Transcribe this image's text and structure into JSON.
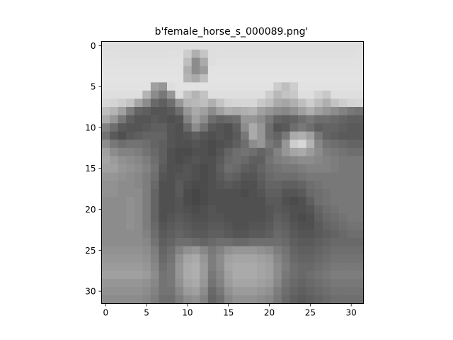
{
  "chart_data": {
    "type": "heatmap",
    "title": "b'female_horse_s_000089.png'",
    "xlabel": "",
    "ylabel": "",
    "colormap": "gray",
    "grid": false,
    "xlim": [
      -0.5,
      31.5
    ],
    "ylim": [
      31.5,
      -0.5
    ],
    "xticks": [
      0,
      5,
      10,
      15,
      20,
      25,
      30
    ],
    "yticks": [
      0,
      5,
      10,
      15,
      20,
      25,
      30
    ],
    "image": {
      "width": 32,
      "height": 32,
      "rows": [
        [
          222,
          222,
          222,
          222,
          222,
          222,
          222,
          222,
          222,
          222,
          222,
          222,
          222,
          222,
          222,
          222,
          222,
          222,
          222,
          222,
          222,
          222,
          222,
          222,
          222,
          222,
          222,
          222,
          222,
          222,
          222,
          222
        ],
        [
          224,
          224,
          223,
          223,
          223,
          223,
          223,
          223,
          224,
          223,
          205,
          175,
          197,
          221,
          223,
          223,
          223,
          223,
          223,
          223,
          223,
          223,
          223,
          223,
          223,
          223,
          223,
          223,
          223,
          223,
          223,
          224
        ],
        [
          225,
          225,
          225,
          225,
          225,
          225,
          225,
          225,
          225,
          225,
          190,
          140,
          170,
          222,
          225,
          225,
          225,
          225,
          225,
          225,
          225,
          225,
          225,
          225,
          225,
          225,
          225,
          225,
          225,
          225,
          225,
          225
        ],
        [
          226,
          226,
          226,
          226,
          226,
          226,
          226,
          226,
          226,
          226,
          175,
          140,
          155,
          226,
          226,
          226,
          226,
          226,
          226,
          226,
          226,
          226,
          226,
          226,
          226,
          226,
          226,
          226,
          226,
          226,
          226,
          226
        ],
        [
          227,
          227,
          227,
          227,
          227,
          227,
          227,
          227,
          227,
          227,
          180,
          170,
          190,
          227,
          227,
          227,
          227,
          227,
          227,
          227,
          227,
          227,
          227,
          227,
          227,
          227,
          227,
          227,
          227,
          227,
          227,
          227
        ],
        [
          226,
          226,
          226,
          226,
          226,
          226,
          160,
          150,
          222,
          226,
          226,
          226,
          226,
          226,
          226,
          226,
          226,
          226,
          226,
          226,
          226,
          204,
          190,
          205,
          226,
          226,
          226,
          226,
          226,
          226,
          226,
          226
        ],
        [
          222,
          222,
          222,
          222,
          222,
          180,
          140,
          120,
          150,
          222,
          195,
          180,
          195,
          222,
          222,
          222,
          222,
          222,
          222,
          222,
          205,
          185,
          195,
          200,
          222,
          222,
          210,
          200,
          222,
          222,
          222,
          222
        ],
        [
          215,
          212,
          205,
          195,
          165,
          140,
          105,
          95,
          110,
          150,
          180,
          185,
          190,
          175,
          195,
          210,
          212,
          214,
          214,
          200,
          190,
          170,
          165,
          175,
          190,
          205,
          190,
          175,
          195,
          205,
          212,
          214
        ],
        [
          190,
          180,
          160,
          125,
          100,
          95,
          85,
          85,
          90,
          110,
          150,
          170,
          160,
          140,
          160,
          175,
          170,
          175,
          180,
          160,
          150,
          140,
          135,
          145,
          160,
          175,
          160,
          150,
          140,
          130,
          120,
          115
        ],
        [
          170,
          150,
          120,
          95,
          85,
          85,
          90,
          85,
          80,
          85,
          130,
          160,
          140,
          110,
          100,
          105,
          110,
          150,
          150,
          140,
          120,
          100,
          95,
          100,
          110,
          120,
          110,
          110,
          105,
          100,
          95,
          95
        ],
        [
          130,
          110,
          90,
          85,
          85,
          90,
          95,
          95,
          85,
          80,
          105,
          140,
          115,
          90,
          85,
          80,
          95,
          140,
          170,
          150,
          110,
          85,
          90,
          110,
          120,
          110,
          95,
          100,
          100,
          95,
          90,
          90
        ],
        [
          115,
          90,
          80,
          90,
          95,
          100,
          100,
          100,
          85,
          80,
          85,
          95,
          85,
          80,
          85,
          80,
          90,
          120,
          170,
          150,
          110,
          100,
          120,
          170,
          175,
          160,
          120,
          100,
          95,
          90,
          90,
          90
        ],
        [
          140,
          120,
          110,
          115,
          115,
          110,
          100,
          95,
          85,
          80,
          80,
          85,
          80,
          75,
          80,
          85,
          95,
          110,
          140,
          150,
          120,
          110,
          150,
          205,
          215,
          180,
          135,
          115,
          110,
          105,
          100,
          100
        ],
        [
          160,
          140,
          130,
          130,
          125,
          115,
          105,
          95,
          80,
          75,
          75,
          80,
          80,
          75,
          85,
          100,
          110,
          115,
          110,
          100,
          110,
          130,
          150,
          165,
          170,
          155,
          140,
          125,
          120,
          115,
          110,
          110
        ],
        [
          165,
          155,
          145,
          140,
          135,
          125,
          110,
          95,
          80,
          75,
          80,
          85,
          80,
          80,
          90,
          105,
          110,
          105,
          95,
          95,
          115,
          125,
          130,
          135,
          140,
          140,
          135,
          130,
          125,
          120,
          120,
          120
        ],
        [
          160,
          160,
          150,
          145,
          140,
          130,
          115,
          90,
          80,
          80,
          85,
          80,
          75,
          80,
          95,
          110,
          105,
          95,
          90,
          100,
          110,
          115,
          120,
          120,
          125,
          130,
          130,
          130,
          125,
          120,
          120,
          120
        ],
        [
          150,
          150,
          145,
          140,
          135,
          125,
          110,
          85,
          80,
          85,
          85,
          80,
          75,
          80,
          90,
          100,
          95,
          85,
          85,
          95,
          105,
          110,
          110,
          110,
          115,
          120,
          120,
          120,
          120,
          120,
          120,
          120
        ],
        [
          145,
          145,
          140,
          140,
          135,
          125,
          105,
          80,
          80,
          90,
          80,
          75,
          75,
          80,
          85,
          90,
          85,
          80,
          80,
          90,
          100,
          100,
          95,
          95,
          100,
          110,
          115,
          120,
          120,
          120,
          120,
          120
        ],
        [
          145,
          145,
          140,
          140,
          140,
          125,
          100,
          80,
          80,
          90,
          75,
          70,
          75,
          80,
          80,
          80,
          80,
          75,
          80,
          85,
          95,
          95,
          85,
          85,
          90,
          105,
          110,
          115,
          120,
          120,
          120,
          120
        ],
        [
          140,
          140,
          140,
          145,
          140,
          125,
          100,
          80,
          80,
          85,
          75,
          70,
          75,
          80,
          80,
          80,
          80,
          80,
          80,
          80,
          90,
          90,
          80,
          75,
          80,
          95,
          110,
          115,
          120,
          120,
          120,
          120
        ],
        [
          140,
          140,
          140,
          145,
          140,
          125,
          100,
          80,
          80,
          85,
          80,
          75,
          80,
          85,
          80,
          80,
          80,
          80,
          80,
          80,
          85,
          90,
          85,
          80,
          80,
          85,
          100,
          110,
          115,
          120,
          120,
          120
        ],
        [
          140,
          140,
          140,
          145,
          140,
          125,
          100,
          80,
          85,
          90,
          85,
          80,
          80,
          85,
          85,
          80,
          80,
          80,
          80,
          80,
          85,
          95,
          90,
          80,
          75,
          80,
          95,
          105,
          110,
          115,
          120,
          120
        ],
        [
          140,
          140,
          140,
          145,
          140,
          125,
          105,
          85,
          90,
          95,
          90,
          85,
          85,
          90,
          90,
          85,
          80,
          80,
          85,
          85,
          90,
          100,
          95,
          85,
          80,
          80,
          90,
          100,
          105,
          110,
          115,
          115
        ],
        [
          140,
          140,
          140,
          140,
          140,
          130,
          110,
          90,
          95,
          100,
          95,
          90,
          90,
          95,
          95,
          90,
          85,
          85,
          90,
          90,
          95,
          105,
          100,
          90,
          85,
          85,
          90,
          95,
          100,
          105,
          110,
          110
        ],
        [
          140,
          140,
          140,
          140,
          140,
          135,
          115,
          95,
          100,
          110,
          110,
          105,
          100,
          105,
          110,
          110,
          105,
          105,
          110,
          110,
          110,
          110,
          105,
          95,
          90,
          90,
          95,
          100,
          105,
          105,
          105,
          105
        ],
        [
          145,
          145,
          145,
          145,
          145,
          140,
          125,
          100,
          110,
          130,
          145,
          150,
          135,
          120,
          130,
          145,
          150,
          150,
          150,
          145,
          140,
          125,
          115,
          100,
          95,
          95,
          100,
          105,
          110,
          110,
          110,
          110
        ],
        [
          150,
          150,
          150,
          150,
          150,
          145,
          130,
          105,
          115,
          145,
          165,
          170,
          150,
          125,
          140,
          160,
          165,
          165,
          165,
          160,
          155,
          135,
          120,
          105,
          100,
          100,
          105,
          110,
          115,
          115,
          115,
          115
        ],
        [
          155,
          155,
          155,
          155,
          155,
          150,
          135,
          110,
          120,
          150,
          170,
          175,
          155,
          125,
          140,
          165,
          170,
          170,
          170,
          165,
          160,
          140,
          125,
          110,
          105,
          105,
          110,
          115,
          120,
          120,
          120,
          120
        ],
        [
          160,
          160,
          160,
          160,
          160,
          155,
          140,
          115,
          120,
          150,
          170,
          175,
          155,
          120,
          135,
          160,
          170,
          170,
          170,
          165,
          160,
          140,
          120,
          110,
          105,
          110,
          115,
          120,
          125,
          125,
          125,
          125
        ],
        [
          150,
          150,
          150,
          150,
          150,
          145,
          135,
          115,
          120,
          145,
          165,
          170,
          150,
          115,
          130,
          155,
          165,
          165,
          165,
          160,
          155,
          135,
          115,
          105,
          100,
          105,
          110,
          115,
          120,
          120,
          120,
          120
        ],
        [
          145,
          145,
          145,
          145,
          145,
          140,
          130,
          115,
          115,
          135,
          155,
          160,
          140,
          105,
          120,
          145,
          155,
          155,
          155,
          150,
          145,
          125,
          110,
          100,
          95,
          100,
          105,
          110,
          115,
          115,
          115,
          115
        ],
        [
          140,
          140,
          140,
          140,
          140,
          135,
          125,
          110,
          110,
          125,
          140,
          145,
          130,
          100,
          110,
          135,
          145,
          145,
          145,
          140,
          135,
          120,
          105,
          95,
          90,
          95,
          100,
          105,
          110,
          110,
          110,
          110
        ]
      ]
    }
  }
}
